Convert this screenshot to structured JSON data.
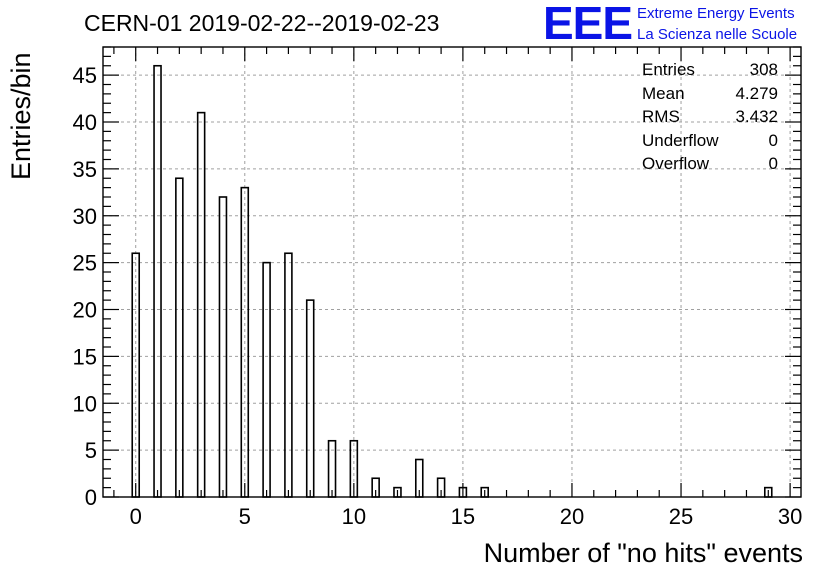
{
  "chart_data": {
    "type": "bar",
    "title": "CERN-01 2019-02-22--2019-02-23",
    "xlabel": "Number of \"no hits\" events",
    "ylabel": "Entries/bin",
    "xlim": [
      -1.5,
      30.5
    ],
    "ylim": [
      0,
      48
    ],
    "x_ticks": [
      0,
      5,
      10,
      15,
      20,
      25,
      30
    ],
    "y_ticks": [
      0,
      5,
      10,
      15,
      20,
      25,
      30,
      35,
      40,
      45
    ],
    "grid": true,
    "bin_width": 0.32,
    "bins": [
      {
        "x": 0,
        "y": 26
      },
      {
        "x": 1,
        "y": 46
      },
      {
        "x": 2,
        "y": 34
      },
      {
        "x": 3,
        "y": 41
      },
      {
        "x": 4,
        "y": 32
      },
      {
        "x": 5,
        "y": 33
      },
      {
        "x": 6,
        "y": 25
      },
      {
        "x": 7,
        "y": 26
      },
      {
        "x": 8,
        "y": 21
      },
      {
        "x": 9,
        "y": 6
      },
      {
        "x": 10,
        "y": 6
      },
      {
        "x": 11,
        "y": 2
      },
      {
        "x": 12,
        "y": 1
      },
      {
        "x": 13,
        "y": 4
      },
      {
        "x": 14,
        "y": 2
      },
      {
        "x": 15,
        "y": 1
      },
      {
        "x": 16,
        "y": 1
      },
      {
        "x": 29,
        "y": 1
      }
    ],
    "stats": [
      {
        "label": "Entries",
        "value": "308"
      },
      {
        "label": "Mean",
        "value": "4.279"
      },
      {
        "label": "RMS",
        "value": "3.432"
      },
      {
        "label": "Underflow",
        "value": "0"
      },
      {
        "label": "Overflow",
        "value": "0"
      }
    ],
    "stats_placement": "top-right"
  },
  "logo": {
    "letters": "EEE",
    "line1": "Extreme Energy Events",
    "line2": "La Scienza nelle Scuole",
    "color": "#0a14e6"
  }
}
